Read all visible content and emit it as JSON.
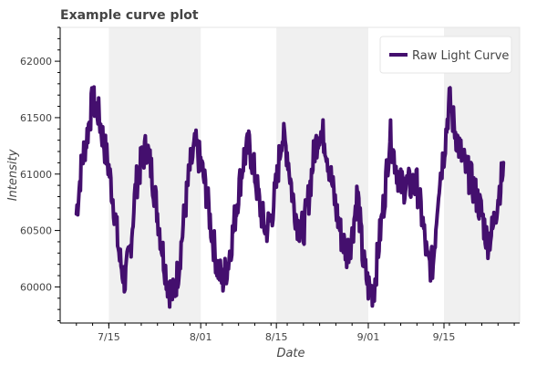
{
  "chart_data": {
    "type": "line",
    "title": "Example curve plot",
    "xlabel": "Date",
    "ylabel": "Intensity",
    "x_ticks": [
      {
        "date": "2018-07-15",
        "label": "7/15"
      },
      {
        "date": "2018-08-01",
        "label": "8/01"
      },
      {
        "date": "2018-08-15",
        "label": "8/15"
      },
      {
        "date": "2018-09-01",
        "label": "9/01"
      },
      {
        "date": "2018-09-15",
        "label": "9/15"
      }
    ],
    "y_ticks": [
      60000,
      60500,
      61000,
      61500,
      62000
    ],
    "xlim": [
      "2018-07-06",
      "2018-09-29"
    ],
    "ylim": [
      59680,
      62300
    ],
    "shaded_bands": [
      [
        "2018-07-15",
        "2018-08-01"
      ],
      [
        "2018-08-15",
        "2018-09-01"
      ],
      [
        "2018-09-15",
        "2018-09-29"
      ]
    ],
    "series": [
      {
        "name": "Raw Light Curve",
        "color": "#440f6e",
        "x": [
          "2018-07-09",
          "2018-07-10",
          "2018-07-11",
          "2018-07-12",
          "2018-07-13",
          "2018-07-14",
          "2018-07-15",
          "2018-07-16",
          "2018-07-17",
          "2018-07-18",
          "2018-07-19",
          "2018-07-20",
          "2018-07-21",
          "2018-07-22",
          "2018-07-23",
          "2018-07-24",
          "2018-07-25",
          "2018-07-26",
          "2018-07-27",
          "2018-07-28",
          "2018-07-29",
          "2018-07-30",
          "2018-07-31",
          "2018-08-01",
          "2018-08-02",
          "2018-08-03",
          "2018-08-04",
          "2018-08-05",
          "2018-08-06",
          "2018-08-07",
          "2018-08-08",
          "2018-08-09",
          "2018-08-10",
          "2018-08-11",
          "2018-08-12",
          "2018-08-13",
          "2018-08-14",
          "2018-08-15",
          "2018-08-16",
          "2018-08-17",
          "2018-08-18",
          "2018-08-19",
          "2018-08-20",
          "2018-08-21",
          "2018-08-22",
          "2018-08-23",
          "2018-08-24",
          "2018-08-25",
          "2018-08-26",
          "2018-08-27",
          "2018-08-28",
          "2018-08-29",
          "2018-08-30",
          "2018-08-31",
          "2018-09-01",
          "2018-09-02",
          "2018-09-03",
          "2018-09-04",
          "2018-09-05",
          "2018-09-06",
          "2018-09-07",
          "2018-09-08",
          "2018-09-09",
          "2018-09-10",
          "2018-09-11",
          "2018-09-12",
          "2018-09-13",
          "2018-09-14",
          "2018-09-15",
          "2018-09-16",
          "2018-09-17",
          "2018-09-18",
          "2018-09-19",
          "2018-09-20",
          "2018-09-21",
          "2018-09-22",
          "2018-09-23",
          "2018-09-24",
          "2018-09-25",
          "2018-09-26"
        ],
        "y": [
          60650,
          61100,
          61350,
          61650,
          61550,
          61300,
          61050,
          60700,
          60250,
          60050,
          60350,
          60900,
          61100,
          61250,
          61000,
          60650,
          60300,
          60000,
          59920,
          60200,
          60650,
          61050,
          61250,
          61100,
          60850,
          60500,
          60200,
          60050,
          60200,
          60500,
          60850,
          61150,
          61250,
          61000,
          60700,
          60500,
          60600,
          60900,
          61350,
          61200,
          60800,
          60550,
          60500,
          60800,
          61200,
          61400,
          61300,
          61000,
          60700,
          60450,
          60300,
          60450,
          60850,
          60250,
          60000,
          59950,
          60400,
          60800,
          61350,
          61100,
          60900,
          60900,
          60900,
          60900,
          60600,
          60200,
          60200,
          60900,
          61200,
          61650,
          61400,
          61200,
          61050,
          60950,
          60800,
          60650,
          60400,
          60500,
          60800,
          61050
        ]
      }
    ]
  }
}
